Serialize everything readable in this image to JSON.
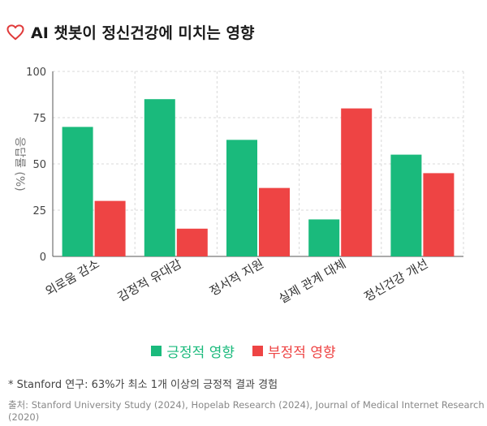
{
  "header": {
    "title": "AI 챗봇이 정신건강에 미치는 영향",
    "icon": "heart-outline-icon",
    "icon_color": "#e03a3a"
  },
  "chart_data": {
    "type": "bar",
    "title": "AI 챗봇이 정신건강에 미치는 영향",
    "categories": [
      "외로움 감소",
      "감정적 유대감",
      "정서적 지원",
      "실제 관계 대체",
      "정신건강 개선"
    ],
    "series": [
      {
        "name": "긍정적 영향",
        "color": "#1aba7c",
        "values": [
          70,
          85,
          63,
          20,
          55
        ]
      },
      {
        "name": "부정적 영향",
        "color": "#ee4444",
        "values": [
          30,
          15,
          37,
          80,
          45
        ]
      }
    ],
    "ylabel": "응답률 (%)",
    "ylim": [
      0,
      100
    ],
    "yticks": [
      "0",
      "25",
      "50",
      "75",
      "100"
    ],
    "grid": true,
    "legend_position": "bottom"
  },
  "footer": {
    "note": "* Stanford 연구: 63%가 최소 1개 이상의 긍정적 결과 경험",
    "source": "출처: Stanford University Study (2024), Hopelab Research (2024), Journal of Medical Internet Research (2020)"
  }
}
